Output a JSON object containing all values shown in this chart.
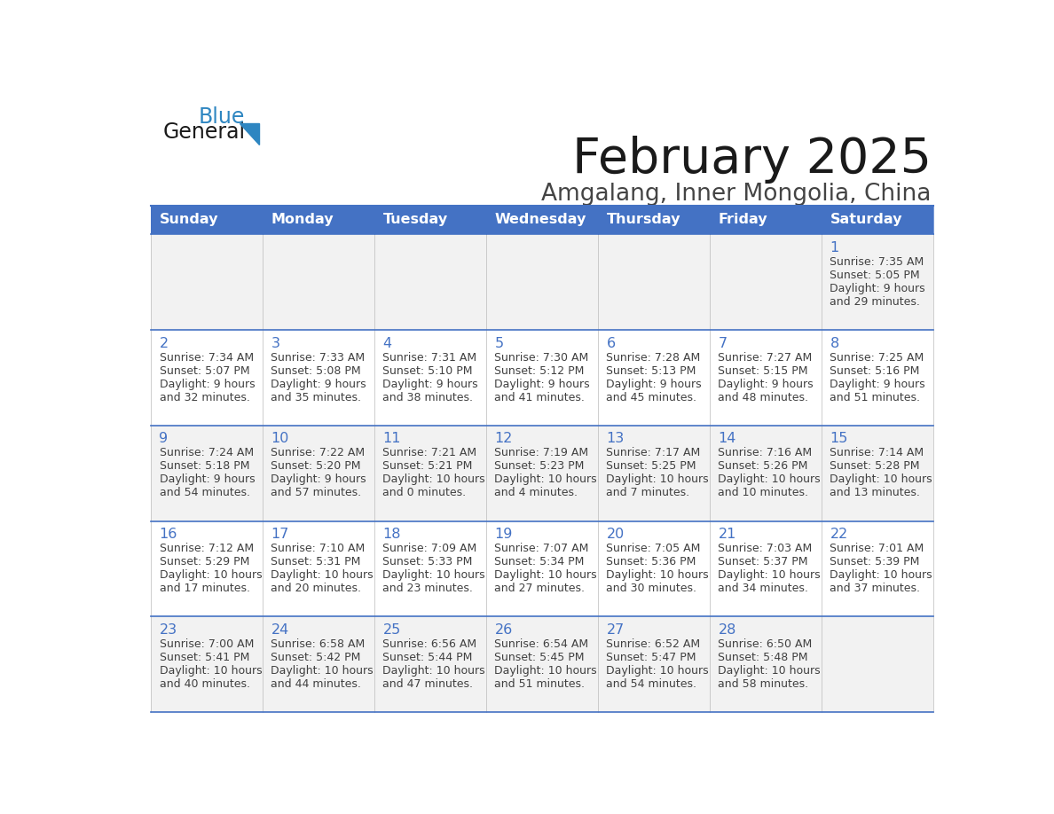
{
  "title": "February 2025",
  "subtitle": "Amgalang, Inner Mongolia, China",
  "days_of_week": [
    "Sunday",
    "Monday",
    "Tuesday",
    "Wednesday",
    "Thursday",
    "Friday",
    "Saturday"
  ],
  "header_bg": "#4472C4",
  "header_text": "#FFFFFF",
  "row_bg": [
    "#F2F2F2",
    "#FFFFFF",
    "#F2F2F2",
    "#FFFFFF",
    "#F2F2F2"
  ],
  "border_color": "#4472C4",
  "day_number_color": "#4472C4",
  "cell_text_color": "#404040",
  "title_color": "#1a1a1a",
  "subtitle_color": "#444444",
  "logo_general_color": "#1a1a1a",
  "logo_blue_color": "#2E86C1",
  "logo_triangle_color": "#2E86C1",
  "calendar_data": [
    [
      {
        "day": null
      },
      {
        "day": null
      },
      {
        "day": null
      },
      {
        "day": null
      },
      {
        "day": null
      },
      {
        "day": null
      },
      {
        "day": 1,
        "sunrise": "7:35 AM",
        "sunset": "5:05 PM",
        "daylight_h": "9 hours",
        "daylight_m": "29 minutes"
      }
    ],
    [
      {
        "day": 2,
        "sunrise": "7:34 AM",
        "sunset": "5:07 PM",
        "daylight_h": "9 hours",
        "daylight_m": "32 minutes"
      },
      {
        "day": 3,
        "sunrise": "7:33 AM",
        "sunset": "5:08 PM",
        "daylight_h": "9 hours",
        "daylight_m": "35 minutes"
      },
      {
        "day": 4,
        "sunrise": "7:31 AM",
        "sunset": "5:10 PM",
        "daylight_h": "9 hours",
        "daylight_m": "38 minutes"
      },
      {
        "day": 5,
        "sunrise": "7:30 AM",
        "sunset": "5:12 PM",
        "daylight_h": "9 hours",
        "daylight_m": "41 minutes"
      },
      {
        "day": 6,
        "sunrise": "7:28 AM",
        "sunset": "5:13 PM",
        "daylight_h": "9 hours",
        "daylight_m": "45 minutes"
      },
      {
        "day": 7,
        "sunrise": "7:27 AM",
        "sunset": "5:15 PM",
        "daylight_h": "9 hours",
        "daylight_m": "48 minutes"
      },
      {
        "day": 8,
        "sunrise": "7:25 AM",
        "sunset": "5:16 PM",
        "daylight_h": "9 hours",
        "daylight_m": "51 minutes"
      }
    ],
    [
      {
        "day": 9,
        "sunrise": "7:24 AM",
        "sunset": "5:18 PM",
        "daylight_h": "9 hours",
        "daylight_m": "54 minutes"
      },
      {
        "day": 10,
        "sunrise": "7:22 AM",
        "sunset": "5:20 PM",
        "daylight_h": "9 hours",
        "daylight_m": "57 minutes"
      },
      {
        "day": 11,
        "sunrise": "7:21 AM",
        "sunset": "5:21 PM",
        "daylight_h": "10 hours",
        "daylight_m": "0 minutes"
      },
      {
        "day": 12,
        "sunrise": "7:19 AM",
        "sunset": "5:23 PM",
        "daylight_h": "10 hours",
        "daylight_m": "4 minutes"
      },
      {
        "day": 13,
        "sunrise": "7:17 AM",
        "sunset": "5:25 PM",
        "daylight_h": "10 hours",
        "daylight_m": "7 minutes"
      },
      {
        "day": 14,
        "sunrise": "7:16 AM",
        "sunset": "5:26 PM",
        "daylight_h": "10 hours",
        "daylight_m": "10 minutes"
      },
      {
        "day": 15,
        "sunrise": "7:14 AM",
        "sunset": "5:28 PM",
        "daylight_h": "10 hours",
        "daylight_m": "13 minutes"
      }
    ],
    [
      {
        "day": 16,
        "sunrise": "7:12 AM",
        "sunset": "5:29 PM",
        "daylight_h": "10 hours",
        "daylight_m": "17 minutes"
      },
      {
        "day": 17,
        "sunrise": "7:10 AM",
        "sunset": "5:31 PM",
        "daylight_h": "10 hours",
        "daylight_m": "20 minutes"
      },
      {
        "day": 18,
        "sunrise": "7:09 AM",
        "sunset": "5:33 PM",
        "daylight_h": "10 hours",
        "daylight_m": "23 minutes"
      },
      {
        "day": 19,
        "sunrise": "7:07 AM",
        "sunset": "5:34 PM",
        "daylight_h": "10 hours",
        "daylight_m": "27 minutes"
      },
      {
        "day": 20,
        "sunrise": "7:05 AM",
        "sunset": "5:36 PM",
        "daylight_h": "10 hours",
        "daylight_m": "30 minutes"
      },
      {
        "day": 21,
        "sunrise": "7:03 AM",
        "sunset": "5:37 PM",
        "daylight_h": "10 hours",
        "daylight_m": "34 minutes"
      },
      {
        "day": 22,
        "sunrise": "7:01 AM",
        "sunset": "5:39 PM",
        "daylight_h": "10 hours",
        "daylight_m": "37 minutes"
      }
    ],
    [
      {
        "day": 23,
        "sunrise": "7:00 AM",
        "sunset": "5:41 PM",
        "daylight_h": "10 hours",
        "daylight_m": "40 minutes"
      },
      {
        "day": 24,
        "sunrise": "6:58 AM",
        "sunset": "5:42 PM",
        "daylight_h": "10 hours",
        "daylight_m": "44 minutes"
      },
      {
        "day": 25,
        "sunrise": "6:56 AM",
        "sunset": "5:44 PM",
        "daylight_h": "10 hours",
        "daylight_m": "47 minutes"
      },
      {
        "day": 26,
        "sunrise": "6:54 AM",
        "sunset": "5:45 PM",
        "daylight_h": "10 hours",
        "daylight_m": "51 minutes"
      },
      {
        "day": 27,
        "sunrise": "6:52 AM",
        "sunset": "5:47 PM",
        "daylight_h": "10 hours",
        "daylight_m": "54 minutes"
      },
      {
        "day": 28,
        "sunrise": "6:50 AM",
        "sunset": "5:48 PM",
        "daylight_h": "10 hours",
        "daylight_m": "58 minutes"
      },
      {
        "day": null
      }
    ]
  ]
}
